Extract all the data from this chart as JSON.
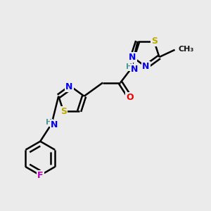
{
  "bg_color": "#ebebeb",
  "bond_color": "#000000",
  "bond_width": 1.8,
  "atom_colors": {
    "C": "#000000",
    "H": "#4a9a9a",
    "N": "#0000ee",
    "O": "#ee0000",
    "S": "#bbaa00",
    "F": "#bb00bb"
  },
  "font_size": 9,
  "font_size_small": 8
}
